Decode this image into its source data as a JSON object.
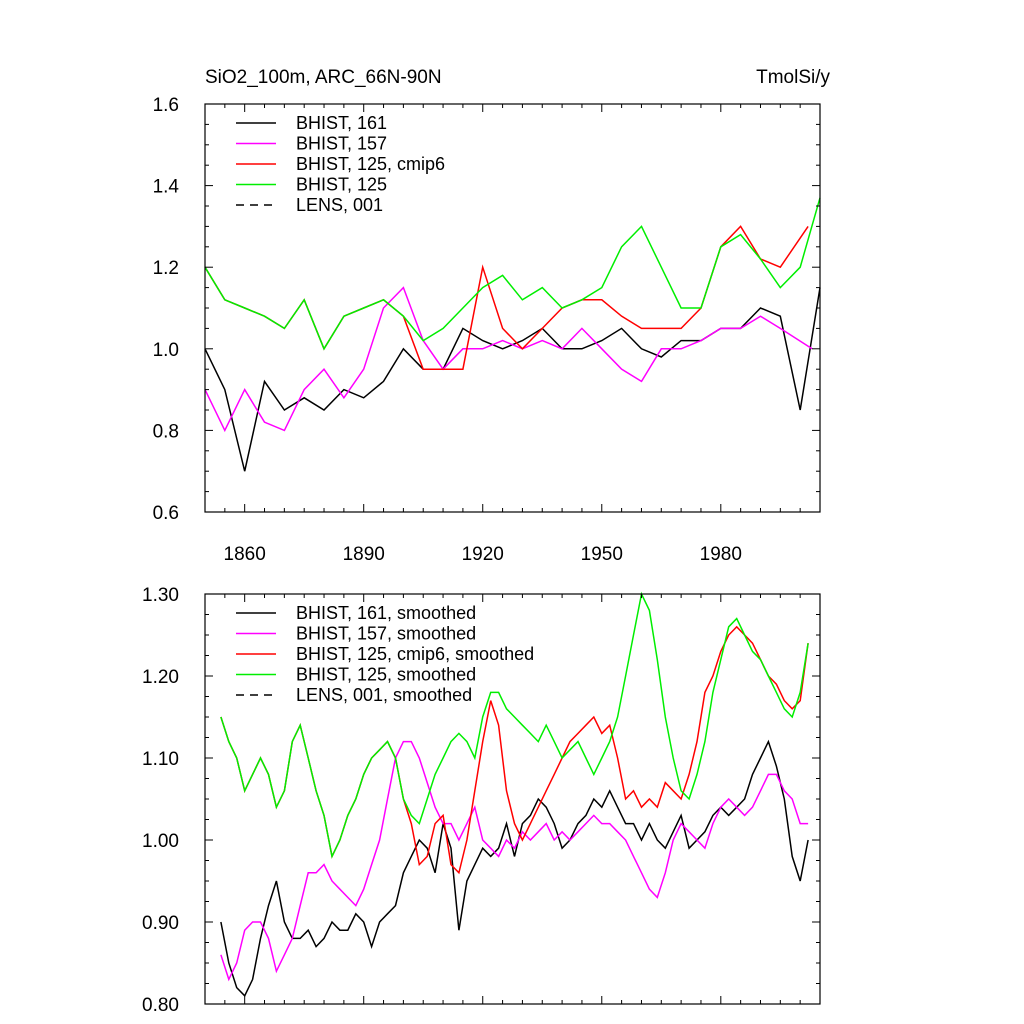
{
  "figure": {
    "title_left": "SiO2_100m, ARC_66N-90N",
    "title_right": "TmolSi/y"
  },
  "chart_data": [
    {
      "type": "line",
      "title": "SiO2_100m, ARC_66N-90N",
      "units": "TmolSi/y",
      "xlim": [
        1850,
        2005
      ],
      "ylim": [
        0.6,
        1.6
      ],
      "xticks": [
        1860,
        1890,
        1920,
        1950,
        1980
      ],
      "xtick_labels": [
        "1860",
        "1890",
        "1920",
        "1950",
        "1980"
      ],
      "yticks": [
        0.6,
        0.8,
        1.0,
        1.2,
        1.4,
        1.6
      ],
      "ytick_labels": [
        "0.6",
        "0.8",
        "1.0",
        "1.2",
        "1.4",
        "1.6"
      ],
      "legend_position": "top-left",
      "series": [
        {
          "name": "BHIST, 161",
          "color": "#000000",
          "dash": "solid",
          "x": [
            1850,
            1855,
            1860,
            1865,
            1870,
            1875,
            1880,
            1885,
            1890,
            1895,
            1900,
            1905,
            1910,
            1915,
            1920,
            1925,
            1930,
            1935,
            1940,
            1945,
            1950,
            1955,
            1960,
            1965,
            1970,
            1975,
            1980,
            1985,
            1990,
            1995,
            2000,
            2005
          ],
          "values": [
            1.0,
            0.9,
            0.7,
            0.92,
            0.85,
            0.88,
            0.85,
            0.9,
            0.88,
            0.92,
            1.0,
            0.95,
            0.95,
            1.05,
            1.02,
            1.0,
            1.02,
            1.05,
            1.0,
            1.0,
            1.02,
            1.05,
            1.0,
            0.98,
            1.02,
            1.02,
            1.05,
            1.05,
            1.1,
            1.08,
            0.85,
            1.15
          ]
        },
        {
          "name": "BHIST, 157",
          "color": "#ff00ff",
          "dash": "solid",
          "x": [
            1850,
            1855,
            1860,
            1865,
            1870,
            1875,
            1880,
            1885,
            1890,
            1895,
            1900,
            1905,
            1910,
            1915,
            1920,
            1925,
            1930,
            1935,
            1940,
            1945,
            1950,
            1955,
            1960,
            1965,
            1970,
            1975,
            1980,
            1985,
            1990,
            1995,
            2003
          ],
          "values": [
            0.9,
            0.8,
            0.9,
            0.82,
            0.8,
            0.9,
            0.95,
            0.88,
            0.95,
            1.1,
            1.15,
            1.02,
            0.95,
            1.0,
            1.0,
            1.02,
            1.0,
            1.02,
            1.0,
            1.05,
            1.0,
            0.95,
            0.92,
            1.0,
            1.0,
            1.02,
            1.05,
            1.05,
            1.08,
            1.05,
            1.0
          ]
        },
        {
          "name": "BHIST, 125, cmip6",
          "color": "#ff0000",
          "dash": "solid",
          "x": [
            1850,
            1855,
            1860,
            1865,
            1870,
            1875,
            1880,
            1885,
            1890,
            1895,
            1900,
            1905,
            1910,
            1915,
            1920,
            1925,
            1930,
            1935,
            1940,
            1945,
            1950,
            1955,
            1960,
            1965,
            1970,
            1975,
            1980,
            1985,
            1990,
            1995,
            2002
          ],
          "values": [
            1.2,
            1.12,
            1.1,
            1.08,
            1.05,
            1.12,
            1.0,
            1.08,
            1.1,
            1.12,
            1.08,
            0.95,
            0.95,
            0.95,
            1.2,
            1.05,
            1.0,
            1.05,
            1.1,
            1.12,
            1.12,
            1.08,
            1.05,
            1.05,
            1.05,
            1.1,
            1.25,
            1.3,
            1.22,
            1.2,
            1.3
          ]
        },
        {
          "name": "BHIST, 125",
          "color": "#00ee00",
          "dash": "solid",
          "x": [
            1850,
            1855,
            1860,
            1865,
            1870,
            1875,
            1880,
            1885,
            1890,
            1895,
            1900,
            1905,
            1910,
            1915,
            1920,
            1925,
            1930,
            1935,
            1940,
            1945,
            1950,
            1955,
            1960,
            1965,
            1970,
            1975,
            1980,
            1985,
            1990,
            1995,
            2000,
            2005
          ],
          "values": [
            1.2,
            1.12,
            1.1,
            1.08,
            1.05,
            1.12,
            1.0,
            1.08,
            1.1,
            1.12,
            1.08,
            1.02,
            1.05,
            1.1,
            1.15,
            1.18,
            1.12,
            1.15,
            1.1,
            1.12,
            1.15,
            1.25,
            1.3,
            1.2,
            1.1,
            1.1,
            1.25,
            1.28,
            1.22,
            1.15,
            1.2,
            1.37
          ]
        },
        {
          "name": "LENS, 001",
          "color": "#000000",
          "dash": "dashed",
          "x": [],
          "values": []
        }
      ]
    },
    {
      "type": "line",
      "title": "",
      "xlim": [
        1850,
        2005
      ],
      "ylim": [
        0.8,
        1.3
      ],
      "xticks": [
        1860,
        1890,
        1920,
        1950,
        1980
      ],
      "yticks": [
        0.8,
        0.9,
        1.0,
        1.1,
        1.2,
        1.3
      ],
      "ytick_labels": [
        "0.80",
        "0.90",
        "1.00",
        "1.10",
        "1.20",
        "1.30"
      ],
      "legend_position": "top-left",
      "series": [
        {
          "name": "BHIST, 161, smoothed",
          "color": "#000000",
          "dash": "solid",
          "x": [
            1854,
            1856,
            1858,
            1860,
            1862,
            1864,
            1866,
            1868,
            1870,
            1872,
            1874,
            1876,
            1878,
            1880,
            1882,
            1884,
            1886,
            1888,
            1890,
            1892,
            1894,
            1896,
            1898,
            1900,
            1902,
            1904,
            1906,
            1908,
            1910,
            1912,
            1914,
            1916,
            1918,
            1920,
            1922,
            1924,
            1926,
            1928,
            1930,
            1932,
            1934,
            1936,
            1938,
            1940,
            1942,
            1944,
            1946,
            1948,
            1950,
            1952,
            1954,
            1956,
            1958,
            1960,
            1962,
            1964,
            1966,
            1968,
            1970,
            1972,
            1974,
            1976,
            1978,
            1980,
            1982,
            1984,
            1986,
            1988,
            1990,
            1992,
            1994,
            1996,
            1998,
            2000,
            2002
          ],
          "values": [
            0.9,
            0.85,
            0.82,
            0.81,
            0.83,
            0.88,
            0.92,
            0.95,
            0.9,
            0.88,
            0.88,
            0.89,
            0.87,
            0.88,
            0.9,
            0.89,
            0.89,
            0.91,
            0.9,
            0.87,
            0.9,
            0.91,
            0.92,
            0.96,
            0.98,
            1.0,
            0.99,
            0.96,
            1.02,
            0.99,
            0.89,
            0.95,
            0.97,
            0.99,
            0.98,
            0.99,
            1.02,
            0.98,
            1.02,
            1.03,
            1.05,
            1.04,
            1.02,
            0.99,
            1.0,
            1.02,
            1.03,
            1.05,
            1.04,
            1.06,
            1.04,
            1.02,
            1.02,
            1.0,
            1.02,
            1.0,
            0.99,
            1.01,
            1.03,
            0.99,
            1.0,
            1.01,
            1.03,
            1.04,
            1.03,
            1.04,
            1.05,
            1.08,
            1.1,
            1.12,
            1.09,
            1.05,
            0.98,
            0.95,
            1.0
          ]
        },
        {
          "name": "BHIST, 157, smoothed",
          "color": "#ff00ff",
          "dash": "solid",
          "x": [
            1854,
            1856,
            1858,
            1860,
            1862,
            1864,
            1866,
            1868,
            1870,
            1872,
            1874,
            1876,
            1878,
            1880,
            1882,
            1884,
            1886,
            1888,
            1890,
            1892,
            1894,
            1896,
            1898,
            1900,
            1902,
            1904,
            1906,
            1908,
            1910,
            1912,
            1914,
            1916,
            1918,
            1920,
            1922,
            1924,
            1926,
            1928,
            1930,
            1932,
            1934,
            1936,
            1938,
            1940,
            1942,
            1944,
            1946,
            1948,
            1950,
            1952,
            1954,
            1956,
            1958,
            1960,
            1962,
            1964,
            1966,
            1968,
            1970,
            1972,
            1974,
            1976,
            1978,
            1980,
            1982,
            1984,
            1986,
            1988,
            1990,
            1992,
            1994,
            1996,
            1998,
            2000,
            2002
          ],
          "values": [
            0.86,
            0.83,
            0.85,
            0.89,
            0.9,
            0.9,
            0.88,
            0.84,
            0.86,
            0.88,
            0.92,
            0.96,
            0.96,
            0.97,
            0.95,
            0.94,
            0.93,
            0.92,
            0.94,
            0.97,
            1.0,
            1.05,
            1.1,
            1.12,
            1.12,
            1.1,
            1.07,
            1.04,
            1.02,
            1.02,
            1.0,
            1.02,
            1.04,
            1.0,
            0.99,
            0.98,
            1.0,
            0.99,
            1.01,
            1.0,
            1.01,
            1.02,
            1.0,
            1.01,
            1.0,
            1.01,
            1.02,
            1.03,
            1.02,
            1.02,
            1.01,
            1.0,
            0.98,
            0.96,
            0.94,
            0.93,
            0.96,
            1.0,
            1.02,
            1.01,
            1.0,
            0.99,
            1.02,
            1.04,
            1.05,
            1.04,
            1.03,
            1.04,
            1.06,
            1.08,
            1.08,
            1.06,
            1.05,
            1.02,
            1.02
          ]
        },
        {
          "name": "BHIST, 125, cmip6, smoothed",
          "color": "#ff0000",
          "dash": "solid",
          "x": [
            1854,
            1856,
            1858,
            1860,
            1862,
            1864,
            1866,
            1868,
            1870,
            1872,
            1874,
            1876,
            1878,
            1880,
            1882,
            1884,
            1886,
            1888,
            1890,
            1892,
            1894,
            1896,
            1898,
            1900,
            1902,
            1904,
            1906,
            1908,
            1910,
            1912,
            1914,
            1916,
            1918,
            1920,
            1922,
            1924,
            1926,
            1928,
            1930,
            1932,
            1934,
            1936,
            1938,
            1940,
            1942,
            1944,
            1946,
            1948,
            1950,
            1952,
            1954,
            1956,
            1958,
            1960,
            1962,
            1964,
            1966,
            1968,
            1970,
            1972,
            1974,
            1976,
            1978,
            1980,
            1982,
            1984,
            1986,
            1988,
            1990,
            1992,
            1994,
            1996,
            1998,
            2000,
            2002
          ],
          "values": [
            1.15,
            1.12,
            1.1,
            1.06,
            1.08,
            1.1,
            1.08,
            1.04,
            1.06,
            1.12,
            1.14,
            1.1,
            1.06,
            1.03,
            0.98,
            1.0,
            1.03,
            1.05,
            1.08,
            1.1,
            1.11,
            1.12,
            1.1,
            1.05,
            1.02,
            0.97,
            0.98,
            1.02,
            1.03,
            0.97,
            0.96,
            1.0,
            1.06,
            1.12,
            1.17,
            1.14,
            1.06,
            1.02,
            1.0,
            1.02,
            1.04,
            1.06,
            1.08,
            1.1,
            1.12,
            1.13,
            1.14,
            1.15,
            1.13,
            1.14,
            1.1,
            1.05,
            1.06,
            1.04,
            1.05,
            1.04,
            1.07,
            1.06,
            1.05,
            1.08,
            1.12,
            1.18,
            1.2,
            1.23,
            1.25,
            1.26,
            1.25,
            1.24,
            1.22,
            1.2,
            1.19,
            1.17,
            1.16,
            1.17,
            1.24
          ]
        },
        {
          "name": "BHIST, 125, smoothed",
          "color": "#00ee00",
          "dash": "solid",
          "x": [
            1854,
            1856,
            1858,
            1860,
            1862,
            1864,
            1866,
            1868,
            1870,
            1872,
            1874,
            1876,
            1878,
            1880,
            1882,
            1884,
            1886,
            1888,
            1890,
            1892,
            1894,
            1896,
            1898,
            1900,
            1902,
            1904,
            1906,
            1908,
            1910,
            1912,
            1914,
            1916,
            1918,
            1920,
            1922,
            1924,
            1926,
            1928,
            1930,
            1932,
            1934,
            1936,
            1938,
            1940,
            1942,
            1944,
            1946,
            1948,
            1950,
            1952,
            1954,
            1956,
            1958,
            1960,
            1962,
            1964,
            1966,
            1968,
            1970,
            1972,
            1974,
            1976,
            1978,
            1980,
            1982,
            1984,
            1986,
            1988,
            1990,
            1992,
            1994,
            1996,
            1998,
            2000,
            2002
          ],
          "values": [
            1.15,
            1.12,
            1.1,
            1.06,
            1.08,
            1.1,
            1.08,
            1.04,
            1.06,
            1.12,
            1.14,
            1.1,
            1.06,
            1.03,
            0.98,
            1.0,
            1.03,
            1.05,
            1.08,
            1.1,
            1.11,
            1.12,
            1.1,
            1.05,
            1.03,
            1.02,
            1.05,
            1.08,
            1.1,
            1.12,
            1.13,
            1.12,
            1.1,
            1.15,
            1.18,
            1.18,
            1.16,
            1.15,
            1.14,
            1.13,
            1.12,
            1.14,
            1.12,
            1.1,
            1.11,
            1.12,
            1.1,
            1.08,
            1.1,
            1.12,
            1.15,
            1.2,
            1.25,
            1.3,
            1.28,
            1.22,
            1.15,
            1.1,
            1.06,
            1.05,
            1.08,
            1.12,
            1.18,
            1.22,
            1.26,
            1.27,
            1.25,
            1.23,
            1.22,
            1.2,
            1.18,
            1.16,
            1.15,
            1.18,
            1.24
          ]
        },
        {
          "name": "LENS, 001, smoothed",
          "color": "#000000",
          "dash": "dashed",
          "x": [],
          "values": []
        }
      ]
    }
  ]
}
